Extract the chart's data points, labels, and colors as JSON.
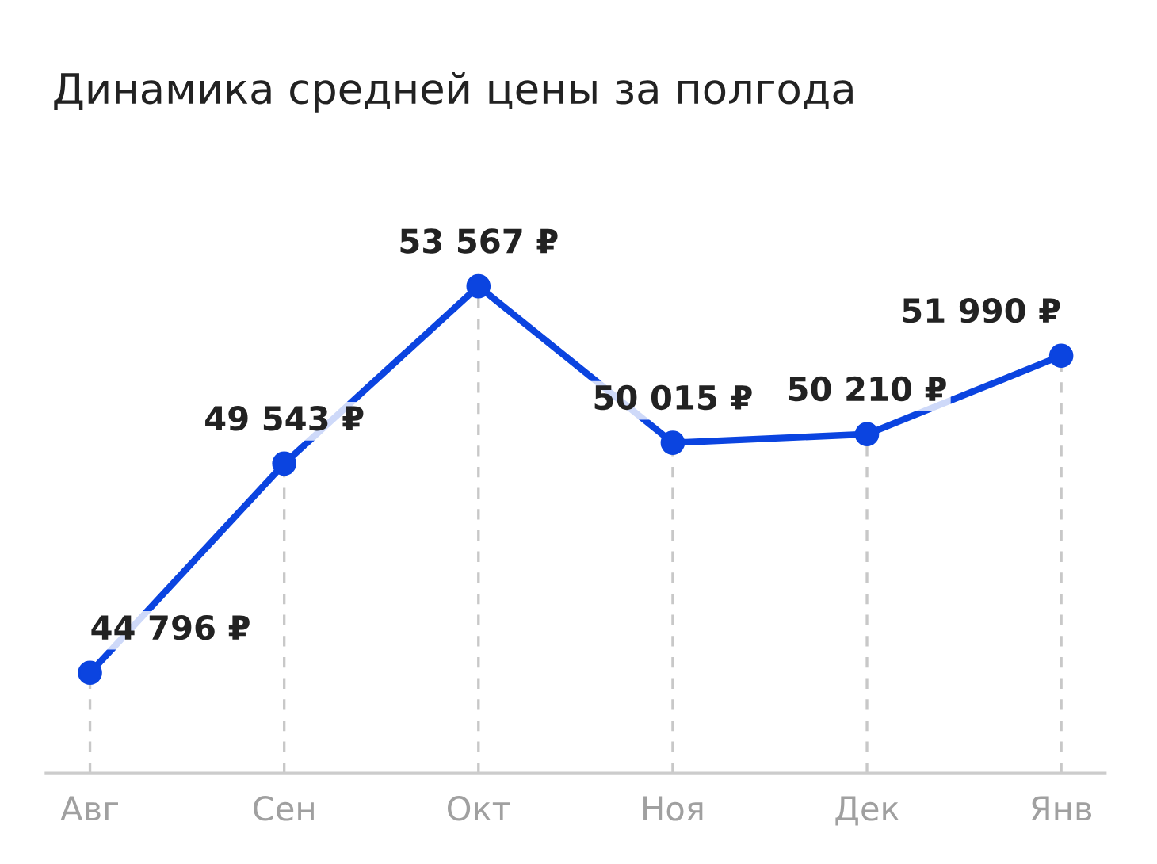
{
  "chart_data": {
    "type": "line",
    "title": "Динамика средней цены за полгода",
    "categories": [
      "Авг",
      "Сен",
      "Окт",
      "Ноя",
      "Дек",
      "Янв"
    ],
    "series": [
      {
        "color": "#0b44e0",
        "values": [
          44796,
          49543,
          53567,
          50015,
          50210,
          51990
        ],
        "value_labels": [
          "44 796 ₽",
          "49 543 ₽",
          "53 567 ₽",
          "50 015 ₽",
          "50 210 ₽",
          "51 990 ₽"
        ]
      }
    ],
    "marker": "circle",
    "line_style": "solid",
    "grid": "x",
    "legend": false
  }
}
